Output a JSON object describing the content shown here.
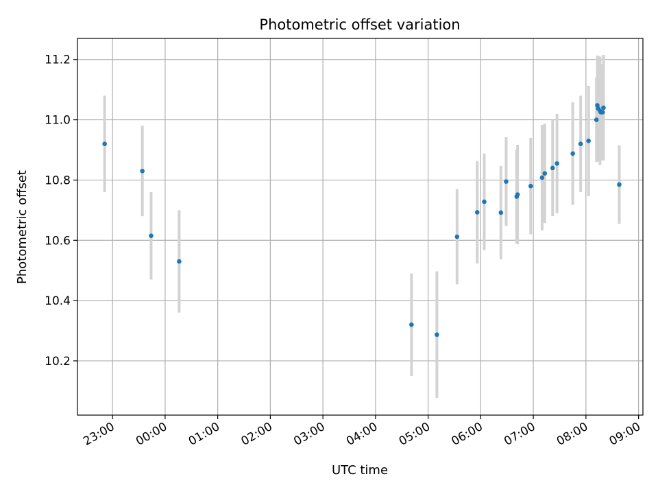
{
  "chart_data": {
    "type": "scatter",
    "title": "Photometric offset variation",
    "xlabel": "UTC time",
    "ylabel": "Photometric offset",
    "xlim": [
      "2000-01-01T22:20",
      "2000-01-02T09:05"
    ],
    "ylim": [
      10.02,
      11.27
    ],
    "x_ticks": [
      {
        "value": "2000-01-01T23:00",
        "label": "23:00"
      },
      {
        "value": "2000-01-02T00:00",
        "label": "00:00"
      },
      {
        "value": "2000-01-02T01:00",
        "label": "01:00"
      },
      {
        "value": "2000-01-02T02:00",
        "label": "02:00"
      },
      {
        "value": "2000-01-02T03:00",
        "label": "03:00"
      },
      {
        "value": "2000-01-02T04:00",
        "label": "04:00"
      },
      {
        "value": "2000-01-02T05:00",
        "label": "05:00"
      },
      {
        "value": "2000-01-02T06:00",
        "label": "06:00"
      },
      {
        "value": "2000-01-02T07:00",
        "label": "07:00"
      },
      {
        "value": "2000-01-02T08:00",
        "label": "08:00"
      },
      {
        "value": "2000-01-02T09:00",
        "label": "09:00"
      }
    ],
    "y_ticks": [
      10.2,
      10.4,
      10.6,
      10.8,
      11.0,
      11.2
    ],
    "grid": true,
    "marker_color": "#1f77b4",
    "errorbar_color": "#d3d3d3",
    "points": [
      {
        "x": "2000-01-01T22:51",
        "y": 10.92,
        "err": 0.16
      },
      {
        "x": "2000-01-01T23:34",
        "y": 10.83,
        "err": 0.15
      },
      {
        "x": "2000-01-01T23:44",
        "y": 10.615,
        "err": 0.145
      },
      {
        "x": "2000-01-02T00:16",
        "y": 10.53,
        "err": 0.17
      },
      {
        "x": "2000-01-02T04:41",
        "y": 10.32,
        "err": 0.17
      },
      {
        "x": "2000-01-02T05:10",
        "y": 10.287,
        "err": 0.21
      },
      {
        "x": "2000-01-02T05:33",
        "y": 10.612,
        "err": 0.158
      },
      {
        "x": "2000-01-02T05:56",
        "y": 10.693,
        "err": 0.17
      },
      {
        "x": "2000-01-02T06:04",
        "y": 10.728,
        "err": 0.16
      },
      {
        "x": "2000-01-02T06:23",
        "y": 10.692,
        "err": 0.155
      },
      {
        "x": "2000-01-02T06:29",
        "y": 10.795,
        "err": 0.147
      },
      {
        "x": "2000-01-02T06:41",
        "y": 10.745,
        "err": 0.155
      },
      {
        "x": "2000-01-02T06:42",
        "y": 10.752,
        "err": 0.165
      },
      {
        "x": "2000-01-02T06:57",
        "y": 10.78,
        "err": 0.16
      },
      {
        "x": "2000-01-02T07:10",
        "y": 10.808,
        "err": 0.175
      },
      {
        "x": "2000-01-02T07:13",
        "y": 10.822,
        "err": 0.165
      },
      {
        "x": "2000-01-02T07:22",
        "y": 10.84,
        "err": 0.16
      },
      {
        "x": "2000-01-02T07:27",
        "y": 10.855,
        "err": 0.165
      },
      {
        "x": "2000-01-02T07:45",
        "y": 10.888,
        "err": 0.17
      },
      {
        "x": "2000-01-02T07:54",
        "y": 10.92,
        "err": 0.16
      },
      {
        "x": "2000-01-02T08:03",
        "y": 10.93,
        "err": 0.183
      },
      {
        "x": "2000-01-02T08:12",
        "y": 11.0,
        "err": 0.14
      },
      {
        "x": "2000-01-02T08:13",
        "y": 11.048,
        "err": 0.165
      },
      {
        "x": "2000-01-02T08:14",
        "y": 11.037,
        "err": 0.175
      },
      {
        "x": "2000-01-02T08:16",
        "y": 11.03,
        "err": 0.18
      },
      {
        "x": "2000-01-02T08:17",
        "y": 11.025,
        "err": 0.16
      },
      {
        "x": "2000-01-02T08:19",
        "y": 11.025,
        "err": 0.15
      },
      {
        "x": "2000-01-02T08:20",
        "y": 11.04,
        "err": 0.175
      },
      {
        "x": "2000-01-02T08:38",
        "y": 10.785,
        "err": 0.13
      }
    ]
  }
}
